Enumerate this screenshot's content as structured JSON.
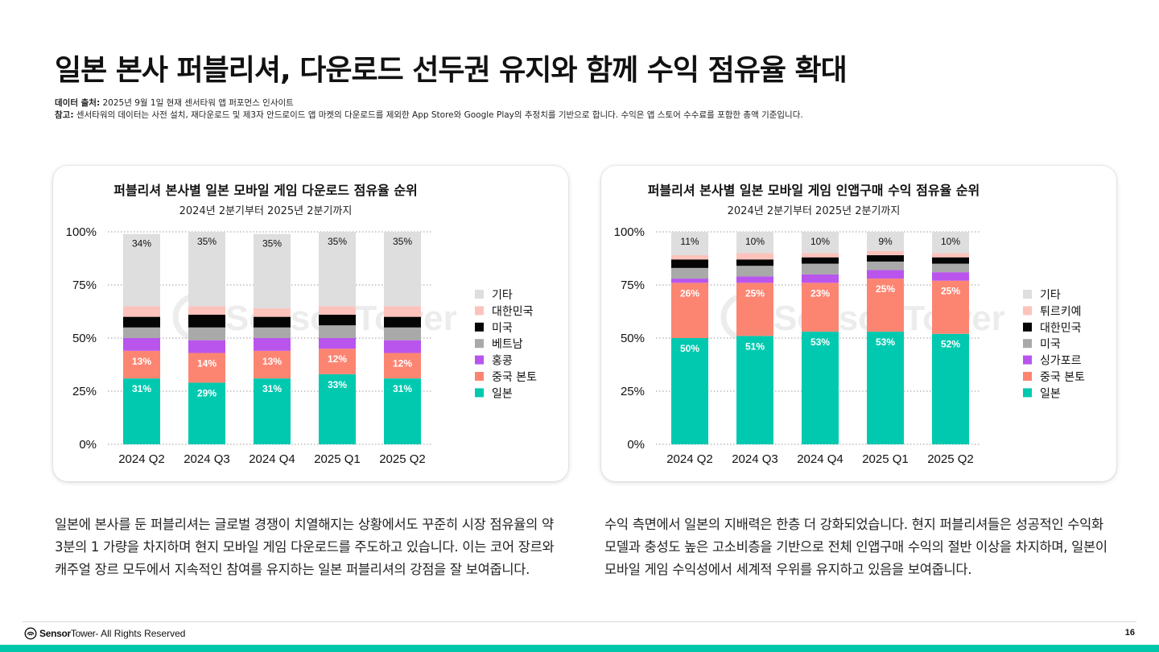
{
  "header": {
    "title": "일본 본사 퍼블리셔, 다운로드 선두권 유지와 함께 수익 점유율 확대",
    "source_label": "데이터 출처:",
    "source_text": " 2025년 9월 1일 현재 센서타워 앱 퍼포먼스 인사이트",
    "note_label": "참고:",
    "note_text": " 센서타워의 데이터는 사전 설치, 재다운로드 및 제3자 안드로이드 앱 마켓의 다운로드를 제외한 App Store와 Google Play의 추정치를 기반으로 합니다. 수익은 앱 스토어 수수료를 포함한 총액 기준입니다."
  },
  "chart_data": [
    {
      "type": "bar",
      "stacked": true,
      "title": "퍼블리셔 본사별 일본 모바일 게임 다운로드 점유율 순위",
      "subtitle": "2024년 2분기부터 2025년 2분기까지",
      "categories": [
        "2024 Q2",
        "2024 Q3",
        "2024 Q4",
        "2025 Q1",
        "2025 Q2"
      ],
      "y_ticks": [
        "0%",
        "25%",
        "50%",
        "75%",
        "100%"
      ],
      "ylim": [
        0,
        100
      ],
      "grid": "horizontal dotted",
      "legend_position": "right",
      "series": [
        {
          "name": "일본",
          "color": "#00c9b0",
          "values": [
            31,
            29,
            31,
            33,
            31
          ],
          "labels": [
            "31%",
            "29%",
            "31%",
            "33%",
            "31%"
          ]
        },
        {
          "name": "중국 본토",
          "color": "#fc8572",
          "values": [
            13,
            14,
            13,
            12,
            12
          ],
          "labels": [
            "13%",
            "14%",
            "13%",
            "12%",
            "12%"
          ]
        },
        {
          "name": "홍콩",
          "color": "#b955ed",
          "values": [
            6,
            6,
            6,
            5,
            6
          ]
        },
        {
          "name": "베트남",
          "color": "#a9a9a9",
          "values": [
            5,
            6,
            5,
            6,
            6
          ]
        },
        {
          "name": "미국",
          "color": "#050505",
          "values": [
            5,
            6,
            5,
            5,
            5
          ]
        },
        {
          "name": "대한민국",
          "color": "#fcc3bc",
          "values": [
            5,
            4,
            4,
            4,
            5
          ]
        },
        {
          "name": "기타",
          "color": "#dedede",
          "values": [
            34,
            35,
            35,
            35,
            35
          ],
          "labels": [
            "34%",
            "35%",
            "35%",
            "35%",
            "35%"
          ]
        }
      ]
    },
    {
      "type": "bar",
      "stacked": true,
      "title": "퍼블리셔 본사별 일본 모바일 게임 인앱구매 수익 점유율 순위",
      "subtitle": "2024년 2분기부터 2025년 2분기까지",
      "categories": [
        "2024 Q2",
        "2024 Q3",
        "2024 Q4",
        "2025 Q1",
        "2025 Q2"
      ],
      "y_ticks": [
        "0%",
        "25%",
        "50%",
        "75%",
        "100%"
      ],
      "ylim": [
        0,
        100
      ],
      "grid": "horizontal dotted",
      "legend_position": "right",
      "series": [
        {
          "name": "일본",
          "color": "#00c9b0",
          "values": [
            50,
            51,
            53,
            53,
            52
          ],
          "labels": [
            "50%",
            "51%",
            "53%",
            "53%",
            "52%"
          ]
        },
        {
          "name": "중국 본토",
          "color": "#fc8572",
          "values": [
            26,
            25,
            23,
            25,
            25
          ],
          "labels": [
            "26%",
            "25%",
            "23%",
            "25%",
            "25%"
          ]
        },
        {
          "name": "싱가포르",
          "color": "#b955ed",
          "values": [
            2,
            3,
            4,
            4,
            4
          ]
        },
        {
          "name": "미국",
          "color": "#a9a9a9",
          "values": [
            5,
            5,
            5,
            4,
            4
          ]
        },
        {
          "name": "대한민국",
          "color": "#050505",
          "values": [
            4,
            3,
            3,
            3,
            3
          ]
        },
        {
          "name": "튀르키예",
          "color": "#fcc3bc",
          "values": [
            2,
            3,
            2,
            2,
            2
          ]
        },
        {
          "name": "기타",
          "color": "#dedede",
          "values": [
            11,
            10,
            10,
            9,
            10
          ],
          "labels": [
            "11%",
            "10%",
            "10%",
            "9%",
            "10%"
          ]
        }
      ]
    }
  ],
  "descriptions": {
    "left": "일본에 본사를 둔 퍼블리셔는 글로벌 경쟁이 치열해지는 상황에서도 꾸준히 시장 점유율의 약 3분의 1 가량을 차지하며 현지 모바일 게임 다운로드를 주도하고 있습니다. 이는 코어 장르와 캐주얼 장르 모두에서 지속적인 참여를 유지하는 일본 퍼블리셔의 강점을 잘 보여줍니다.",
    "right": "수익 측면에서 일본의 지배력은 한층 더 강화되었습니다. 현지 퍼블리셔들은 성공적인 수익화 모델과 충성도 높은 고소비층을 기반으로 전체 인앱구매 수익의 절반 이상을 차지하며, 일본이 모바일 게임 수익성에서 세계적 우위를 유지하고 있음을 보여줍니다."
  },
  "footer": {
    "brand_sensor": "Sensor",
    "brand_tower": "Tower",
    "rights": " - All Rights Reserved",
    "page_number": "16"
  },
  "watermark": {
    "text": "Sensor Tower"
  }
}
